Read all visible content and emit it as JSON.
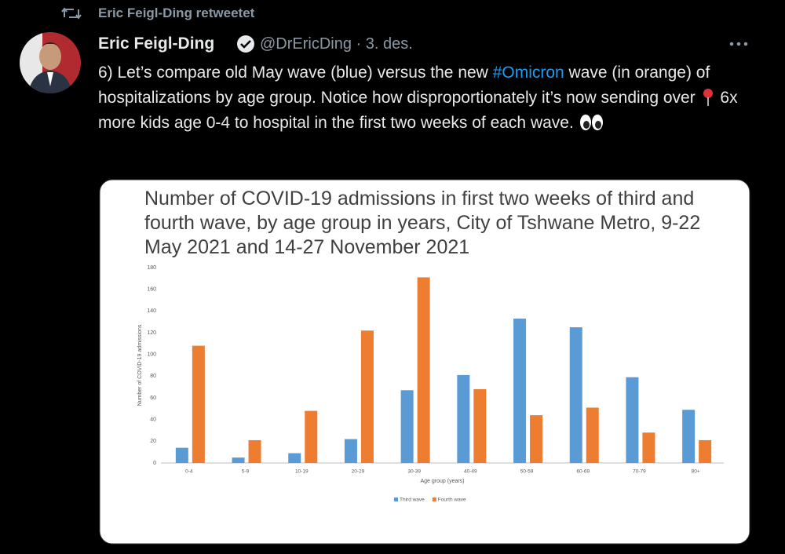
{
  "retweet_label": "Eric Feigl-Ding retweetet",
  "author": {
    "name": "Eric Feigl-Ding",
    "meta": "@DrEricDing · 3. des."
  },
  "tweet": {
    "text_before": "6) Let’s compare old May wave (blue) versus the new ",
    "hashtag": "#Omicron",
    "text_middle": " wave (in orange) of hospitalizations by age group. Notice how disproportionately it’s now sending over ",
    "text_after": " 6x more kids age 0-4 to hospital in the first two weeks of each wave. "
  },
  "chart_data": {
    "type": "bar",
    "title": "Number of COVID-19 admissions in first two weeks of third and fourth wave, by age group in years, City of Tshwane Metro, 9-22 May 2021 and 14-27 November 2021",
    "x_label": "Age group (years)",
    "y_label": "Number of COVID-19 admissions",
    "categories": [
      "0-4",
      "5-9",
      "10-19",
      "20-29",
      "30-39",
      "40-49",
      "50-59",
      "60-69",
      "70-79",
      "80+"
    ],
    "series": [
      {
        "name": "Third wave",
        "color": "#5b9bd5",
        "values": [
          14,
          5,
          9,
          22,
          67,
          81,
          133,
          125,
          79,
          49
        ]
      },
      {
        "name": "Fourth wave",
        "color": "#ed7d31",
        "values": [
          108,
          21,
          48,
          122,
          171,
          68,
          44,
          51,
          28,
          21
        ]
      }
    ],
    "ylim": [
      0,
      180
    ],
    "yticks": [
      0,
      20,
      40,
      60,
      80,
      100,
      120,
      140,
      160,
      180
    ],
    "grid": false,
    "legend": "bottom"
  }
}
